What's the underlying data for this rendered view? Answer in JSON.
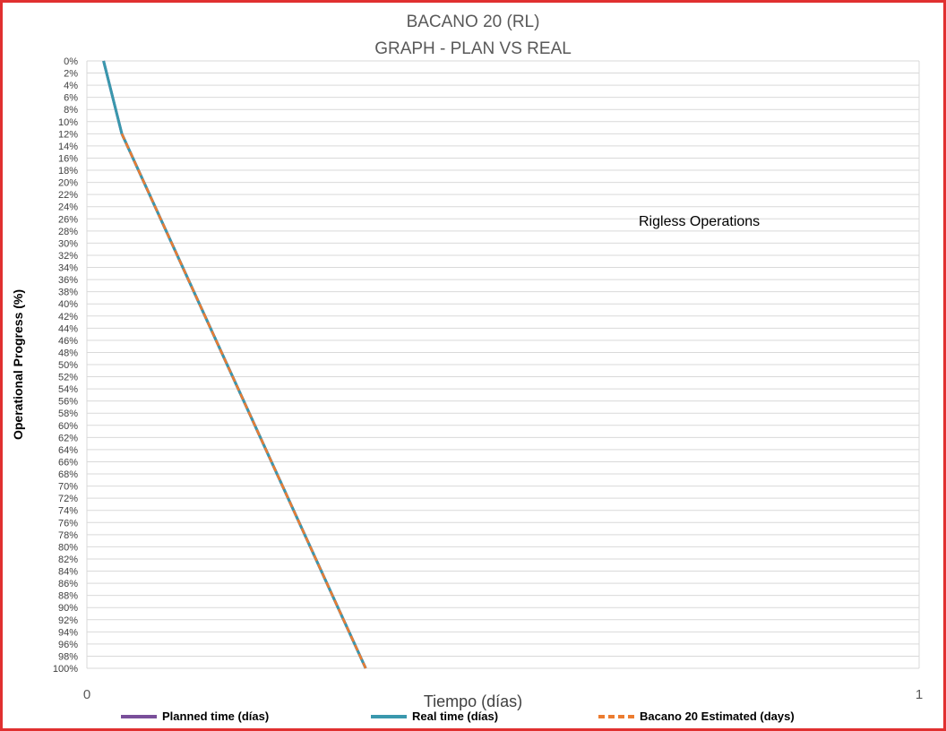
{
  "chart_data": {
    "type": "line",
    "title": "BACANO 20 (RL)",
    "subtitle": "GRAPH  - PLAN VS REAL",
    "xlabel": "Tiempo (días)",
    "ylabel": "Operational Progress (%)",
    "xlim": [
      0,
      1
    ],
    "ylim": [
      0,
      100
    ],
    "y_inverted": true,
    "x_ticks": [
      "0",
      "1"
    ],
    "y_ticks": [
      "0%",
      "2%",
      "4%",
      "6%",
      "8%",
      "10%",
      "12%",
      "14%",
      "16%",
      "18%",
      "20%",
      "22%",
      "24%",
      "26%",
      "28%",
      "30%",
      "32%",
      "34%",
      "36%",
      "38%",
      "40%",
      "42%",
      "44%",
      "46%",
      "48%",
      "50%",
      "52%",
      "54%",
      "56%",
      "58%",
      "60%",
      "62%",
      "64%",
      "66%",
      "68%",
      "70%",
      "72%",
      "74%",
      "76%",
      "78%",
      "80%",
      "82%",
      "84%",
      "86%",
      "88%",
      "90%",
      "92%",
      "94%",
      "96%",
      "98%",
      "100%"
    ],
    "grid": true,
    "legend_position": "bottom",
    "annotation": "Rigless Operations",
    "series": [
      {
        "name": "Planned time (días)",
        "color": "#7a4f9a",
        "dashed": false,
        "x": [
          0.02,
          0.042,
          0.335
        ],
        "y": [
          0,
          12,
          100
        ]
      },
      {
        "name": "Real time (días)",
        "color": "#3a98ad",
        "dashed": false,
        "x": [
          0.02,
          0.042,
          0.335
        ],
        "y": [
          0,
          12,
          100
        ]
      },
      {
        "name": "Bacano 20  Estimated (days)",
        "color": "#ec7c30",
        "dashed": true,
        "x": [
          0.042,
          0.335
        ],
        "y": [
          12,
          100
        ]
      }
    ]
  }
}
